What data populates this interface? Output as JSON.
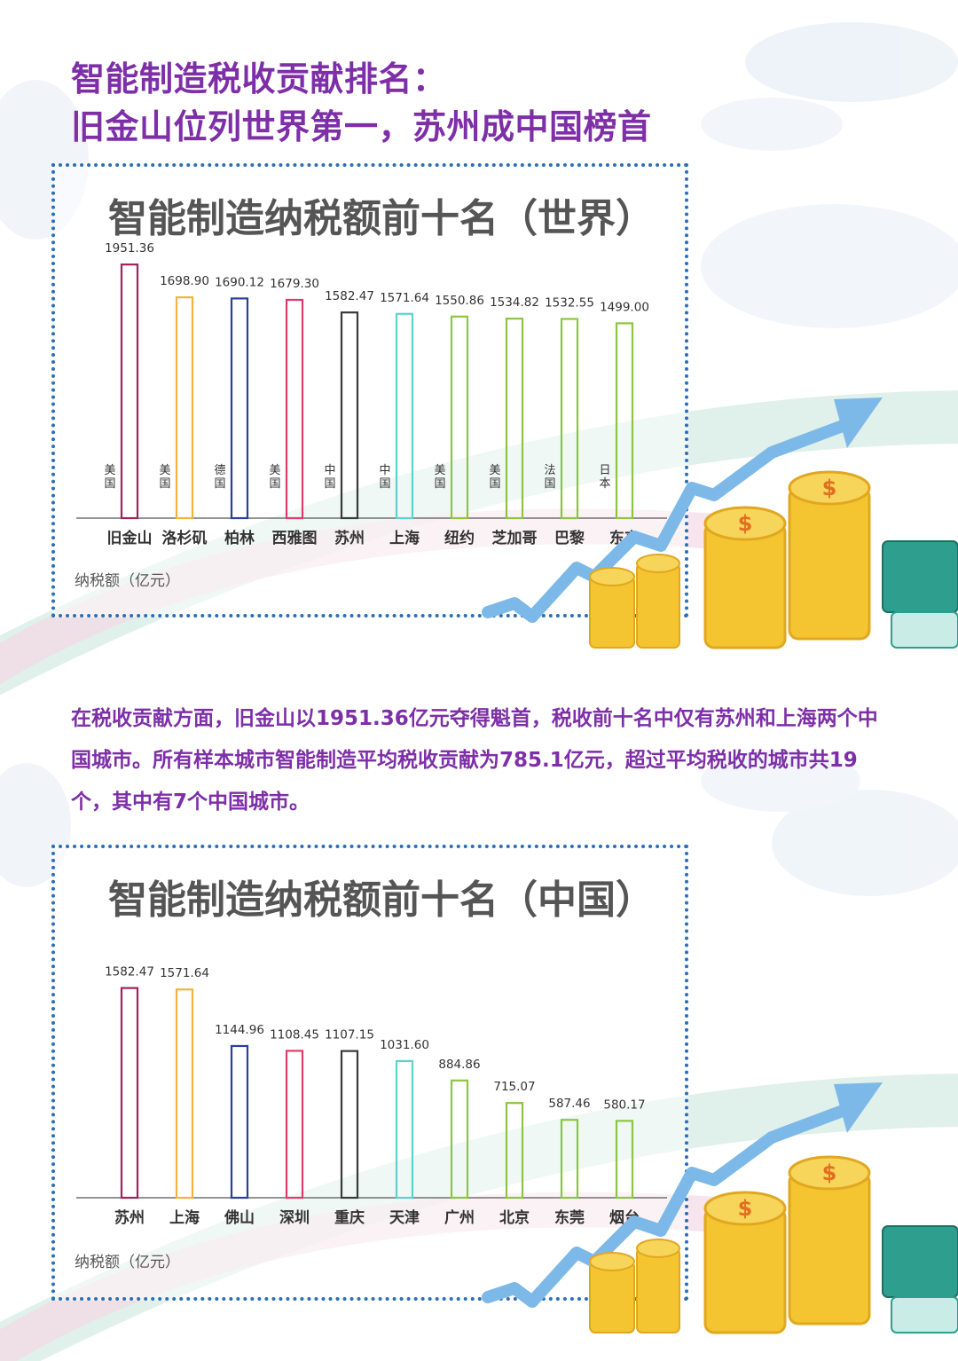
{
  "headline": {
    "line1": "智能制造税收贡献排名：",
    "line2": "旧金山位列世界第一，苏州成中国榜首"
  },
  "paragraph": "在税收贡献方面，旧金山以1951.36亿元夺得魁首，税收前十名中仅有苏州和上海两个中国城市。所有样本城市智能制造平均税收贡献为785.1亿元，超过平均税收的城市共19个，其中有7个中国城市。",
  "colors": {
    "headline": "#7e2fa8",
    "panel_border": "#2a6fb8",
    "arrow": "#7db9e8",
    "coin": "#f5c431",
    "cash": "#2e9e8f"
  },
  "chart_data": [
    {
      "type": "bar",
      "title": "智能制造纳税额前十名（世界）",
      "ylabel": "纳税额（亿元）",
      "categories": [
        "旧金山",
        "洛杉矶",
        "柏林",
        "西雅图",
        "苏州",
        "上海",
        "纽约",
        "芝加哥",
        "巴黎",
        "东京"
      ],
      "countries": [
        "美国",
        "美国",
        "德国",
        "美国",
        "中国",
        "中国",
        "美国",
        "美国",
        "法国",
        "日本"
      ],
      "values": [
        1951.36,
        1698.9,
        1690.12,
        1679.3,
        1582.47,
        1571.64,
        1550.86,
        1534.82,
        1532.55,
        1499.0
      ],
      "value_labels": [
        "1951.36",
        "1698.90",
        "1690.12",
        "1679.30",
        "1582.47",
        "1571.64",
        "1550.86",
        "1534.82",
        "1532.55",
        "1499.00"
      ],
      "bar_colors": [
        "#a0245c",
        "#f2b33d",
        "#2a3f9a",
        "#e33a6b",
        "#3a3a3a",
        "#5fd0d0",
        "#8cc640",
        "#8cc640",
        "#8cc640",
        "#8cc640"
      ],
      "ylim": [
        0,
        2000
      ],
      "grid": false,
      "legend": "none"
    },
    {
      "type": "bar",
      "title": "智能制造纳税额前十名（中国）",
      "ylabel": "纳税额（亿元）",
      "categories": [
        "苏州",
        "上海",
        "佛山",
        "深圳",
        "重庆",
        "天津",
        "广州",
        "北京",
        "东莞",
        "烟台"
      ],
      "values": [
        1582.47,
        1571.64,
        1144.96,
        1108.45,
        1107.15,
        1031.6,
        884.86,
        715.07,
        587.46,
        580.17
      ],
      "value_labels": [
        "1582.47",
        "1571.64",
        "1144.96",
        "1108.45",
        "1107.15",
        "1031.60",
        "884.86",
        "715.07",
        "587.46",
        "580.17"
      ],
      "bar_colors": [
        "#a0245c",
        "#f2b33d",
        "#2a3f9a",
        "#e33a6b",
        "#3a3a3a",
        "#5fd0d0",
        "#8cc640",
        "#8cc640",
        "#8cc640",
        "#8cc640"
      ],
      "ylim": [
        0,
        1600
      ],
      "grid": false,
      "legend": "none"
    }
  ]
}
